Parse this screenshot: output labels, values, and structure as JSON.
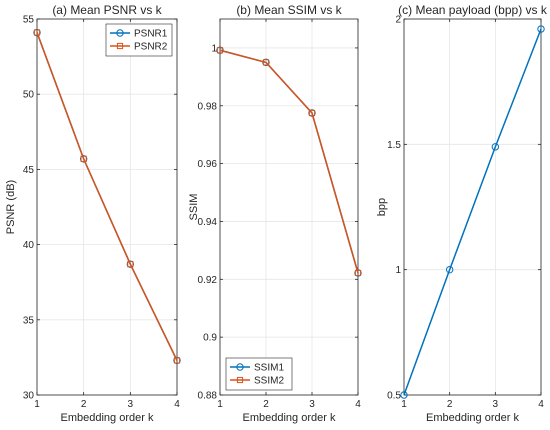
{
  "chart_data": [
    {
      "type": "line",
      "title": "(a) Mean PSNR vs k",
      "xlabel": "Embedding order k",
      "ylabel": "PSNR (dB)",
      "xlim": [
        1,
        4
      ],
      "ylim": [
        30,
        55
      ],
      "x": [
        1,
        2,
        3,
        4
      ],
      "xticks": [
        1,
        2,
        3,
        4
      ],
      "yticks": [
        30,
        35,
        40,
        45,
        50,
        55
      ],
      "ytick_labels": [
        "30",
        "35",
        "40",
        "45",
        "50",
        "55"
      ],
      "grid": true,
      "legend_position": "top-right",
      "series": [
        {
          "name": "PSNR1",
          "values": [
            54.1,
            45.7,
            38.7,
            32.3
          ],
          "color": "#0072BD",
          "marker": "circle"
        },
        {
          "name": "PSNR2",
          "values": [
            54.1,
            45.7,
            38.7,
            32.3
          ],
          "color": "#D95319",
          "marker": "square"
        }
      ]
    },
    {
      "type": "line",
      "title": "(b) Mean SSIM vs k",
      "xlabel": "Embedding order k",
      "ylabel": "SSIM",
      "xlim": [
        1,
        4
      ],
      "ylim": [
        0.88,
        1.01
      ],
      "x": [
        1,
        2,
        3,
        4
      ],
      "xticks": [
        1,
        2,
        3,
        4
      ],
      "yticks": [
        0.88,
        0.9,
        0.92,
        0.94,
        0.96,
        0.98,
        1
      ],
      "ytick_labels": [
        "0.88",
        "0.9",
        "0.92",
        "0.94",
        "0.96",
        "0.98",
        "1"
      ],
      "grid": true,
      "legend_position": "bottom-left",
      "series": [
        {
          "name": "SSIM1",
          "values": [
            0.9992,
            0.995,
            0.9775,
            0.9222
          ],
          "color": "#0072BD",
          "marker": "circle"
        },
        {
          "name": "SSIM2",
          "values": [
            0.9992,
            0.995,
            0.9775,
            0.9222
          ],
          "color": "#D95319",
          "marker": "square"
        }
      ]
    },
    {
      "type": "line",
      "title": "(c) Mean payload (bpp) vs k",
      "xlabel": "Embedding order k",
      "ylabel": "bpp",
      "xlim": [
        1,
        4
      ],
      "ylim": [
        0.5,
        2
      ],
      "x": [
        1,
        2,
        3,
        4
      ],
      "xticks": [
        1,
        2,
        3,
        4
      ],
      "yticks": [
        0.5,
        1,
        1.5,
        2
      ],
      "ytick_labels": [
        "0.5",
        "1",
        "1.5",
        "2"
      ],
      "grid": true,
      "series": [
        {
          "values": [
            0.5,
            1.0,
            1.49,
            1.96
          ],
          "color": "#0072BD",
          "marker": "circle"
        }
      ]
    }
  ]
}
